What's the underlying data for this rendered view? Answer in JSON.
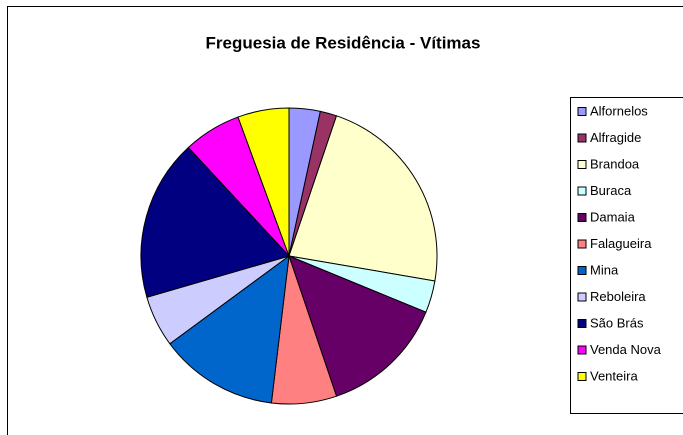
{
  "chart_data": {
    "type": "pie",
    "title": "Freguesia de Residência - Vítimas",
    "categories": [
      "Alfornelos",
      "Alfragide",
      "Brandoa",
      "Buraca",
      "Damaia",
      "Falagueira",
      "Mina",
      "Reboleira",
      "São Brás",
      "Venda Nova",
      "Venteira"
    ],
    "values": [
      3.4,
      1.8,
      22.5,
      3.5,
      13.6,
      7.1,
      13,
      5.6,
      17.6,
      6.3,
      5.6
    ],
    "colors": [
      "#9999ff",
      "#993366",
      "#ffffcc",
      "#ccffff",
      "#660066",
      "#ff8080",
      "#0066cc",
      "#ccccff",
      "#000080",
      "#ff00ff",
      "#ffff00"
    ],
    "legend": "right"
  }
}
